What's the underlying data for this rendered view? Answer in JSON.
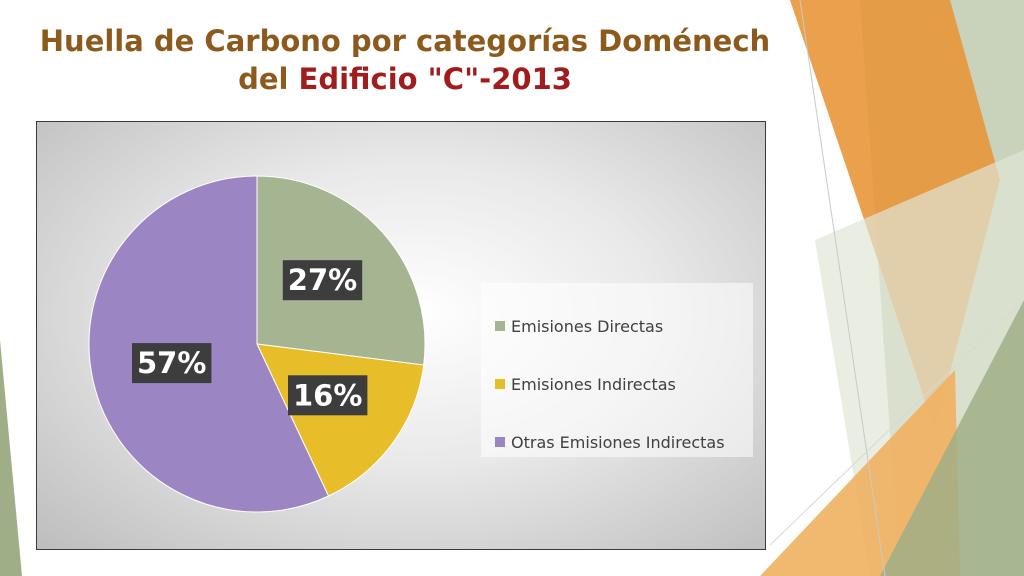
{
  "slide": {
    "title_part1": "Huella de Carbono por categorías Doménech",
    "title_part2": "del ",
    "title_accent": "Edificio \"C\"-2013"
  },
  "colors": {
    "title": "#8c5a1c",
    "title_accent": "#a11d1d",
    "deco_orange": "#e8963a",
    "deco_green": "#9fae86",
    "label_box": "#3d3d3d"
  },
  "chart_data": {
    "type": "pie",
    "title": "",
    "categories": [
      "Emisiones Directas",
      "Emisiones Indirectas",
      "Otras Emisiones Indirectas"
    ],
    "values": [
      27,
      16,
      57
    ],
    "labels": [
      "27%",
      "16%",
      "57%"
    ],
    "colors": [
      "#a5b592",
      "#e8bd2a",
      "#9b86c3"
    ],
    "start_angle_deg": 0,
    "direction": "clockwise",
    "legend_position": "right"
  }
}
